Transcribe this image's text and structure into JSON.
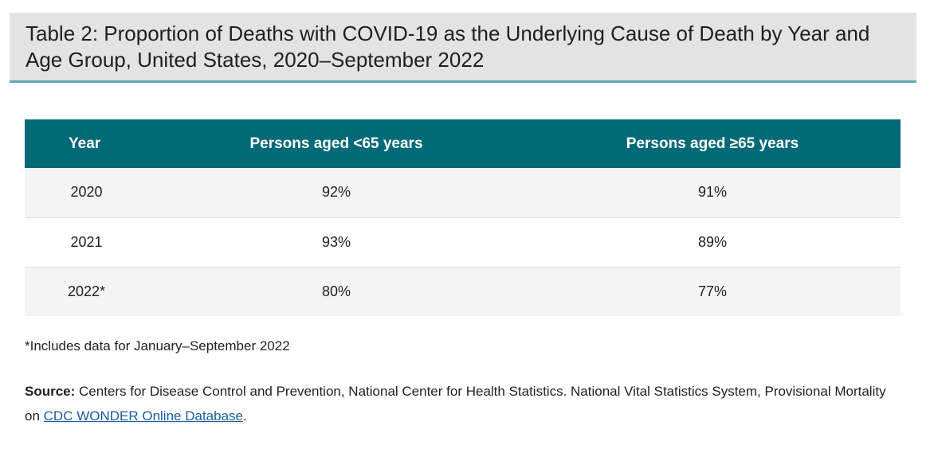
{
  "title": "Table 2: Proportion of Deaths with COVID-19 as the Underlying Cause of Death by Year and Age Group, United States, 2020–September 2022",
  "table": {
    "headers": [
      "Year",
      "Persons aged <65 years",
      "Persons aged ≥65 years"
    ],
    "rows": [
      [
        "2020",
        "92%",
        "91%"
      ],
      [
        "2021",
        "93%",
        "89%"
      ],
      [
        "2022*",
        "80%",
        "77%"
      ]
    ]
  },
  "footnote": "*Includes data for January–September 2022",
  "source": {
    "label": "Source:",
    "text": " Centers for Disease Control and Prevention, National Center for Health Statistics. National Vital Statistics System, Provisional Mortality on ",
    "link_text": "CDC WONDER Online Database",
    "trailing": "."
  },
  "colors": {
    "header_bg": "#016977",
    "title_bg": "#e3e3e3",
    "title_rule": "#5fa7b6",
    "link": "#1b5a9e"
  }
}
